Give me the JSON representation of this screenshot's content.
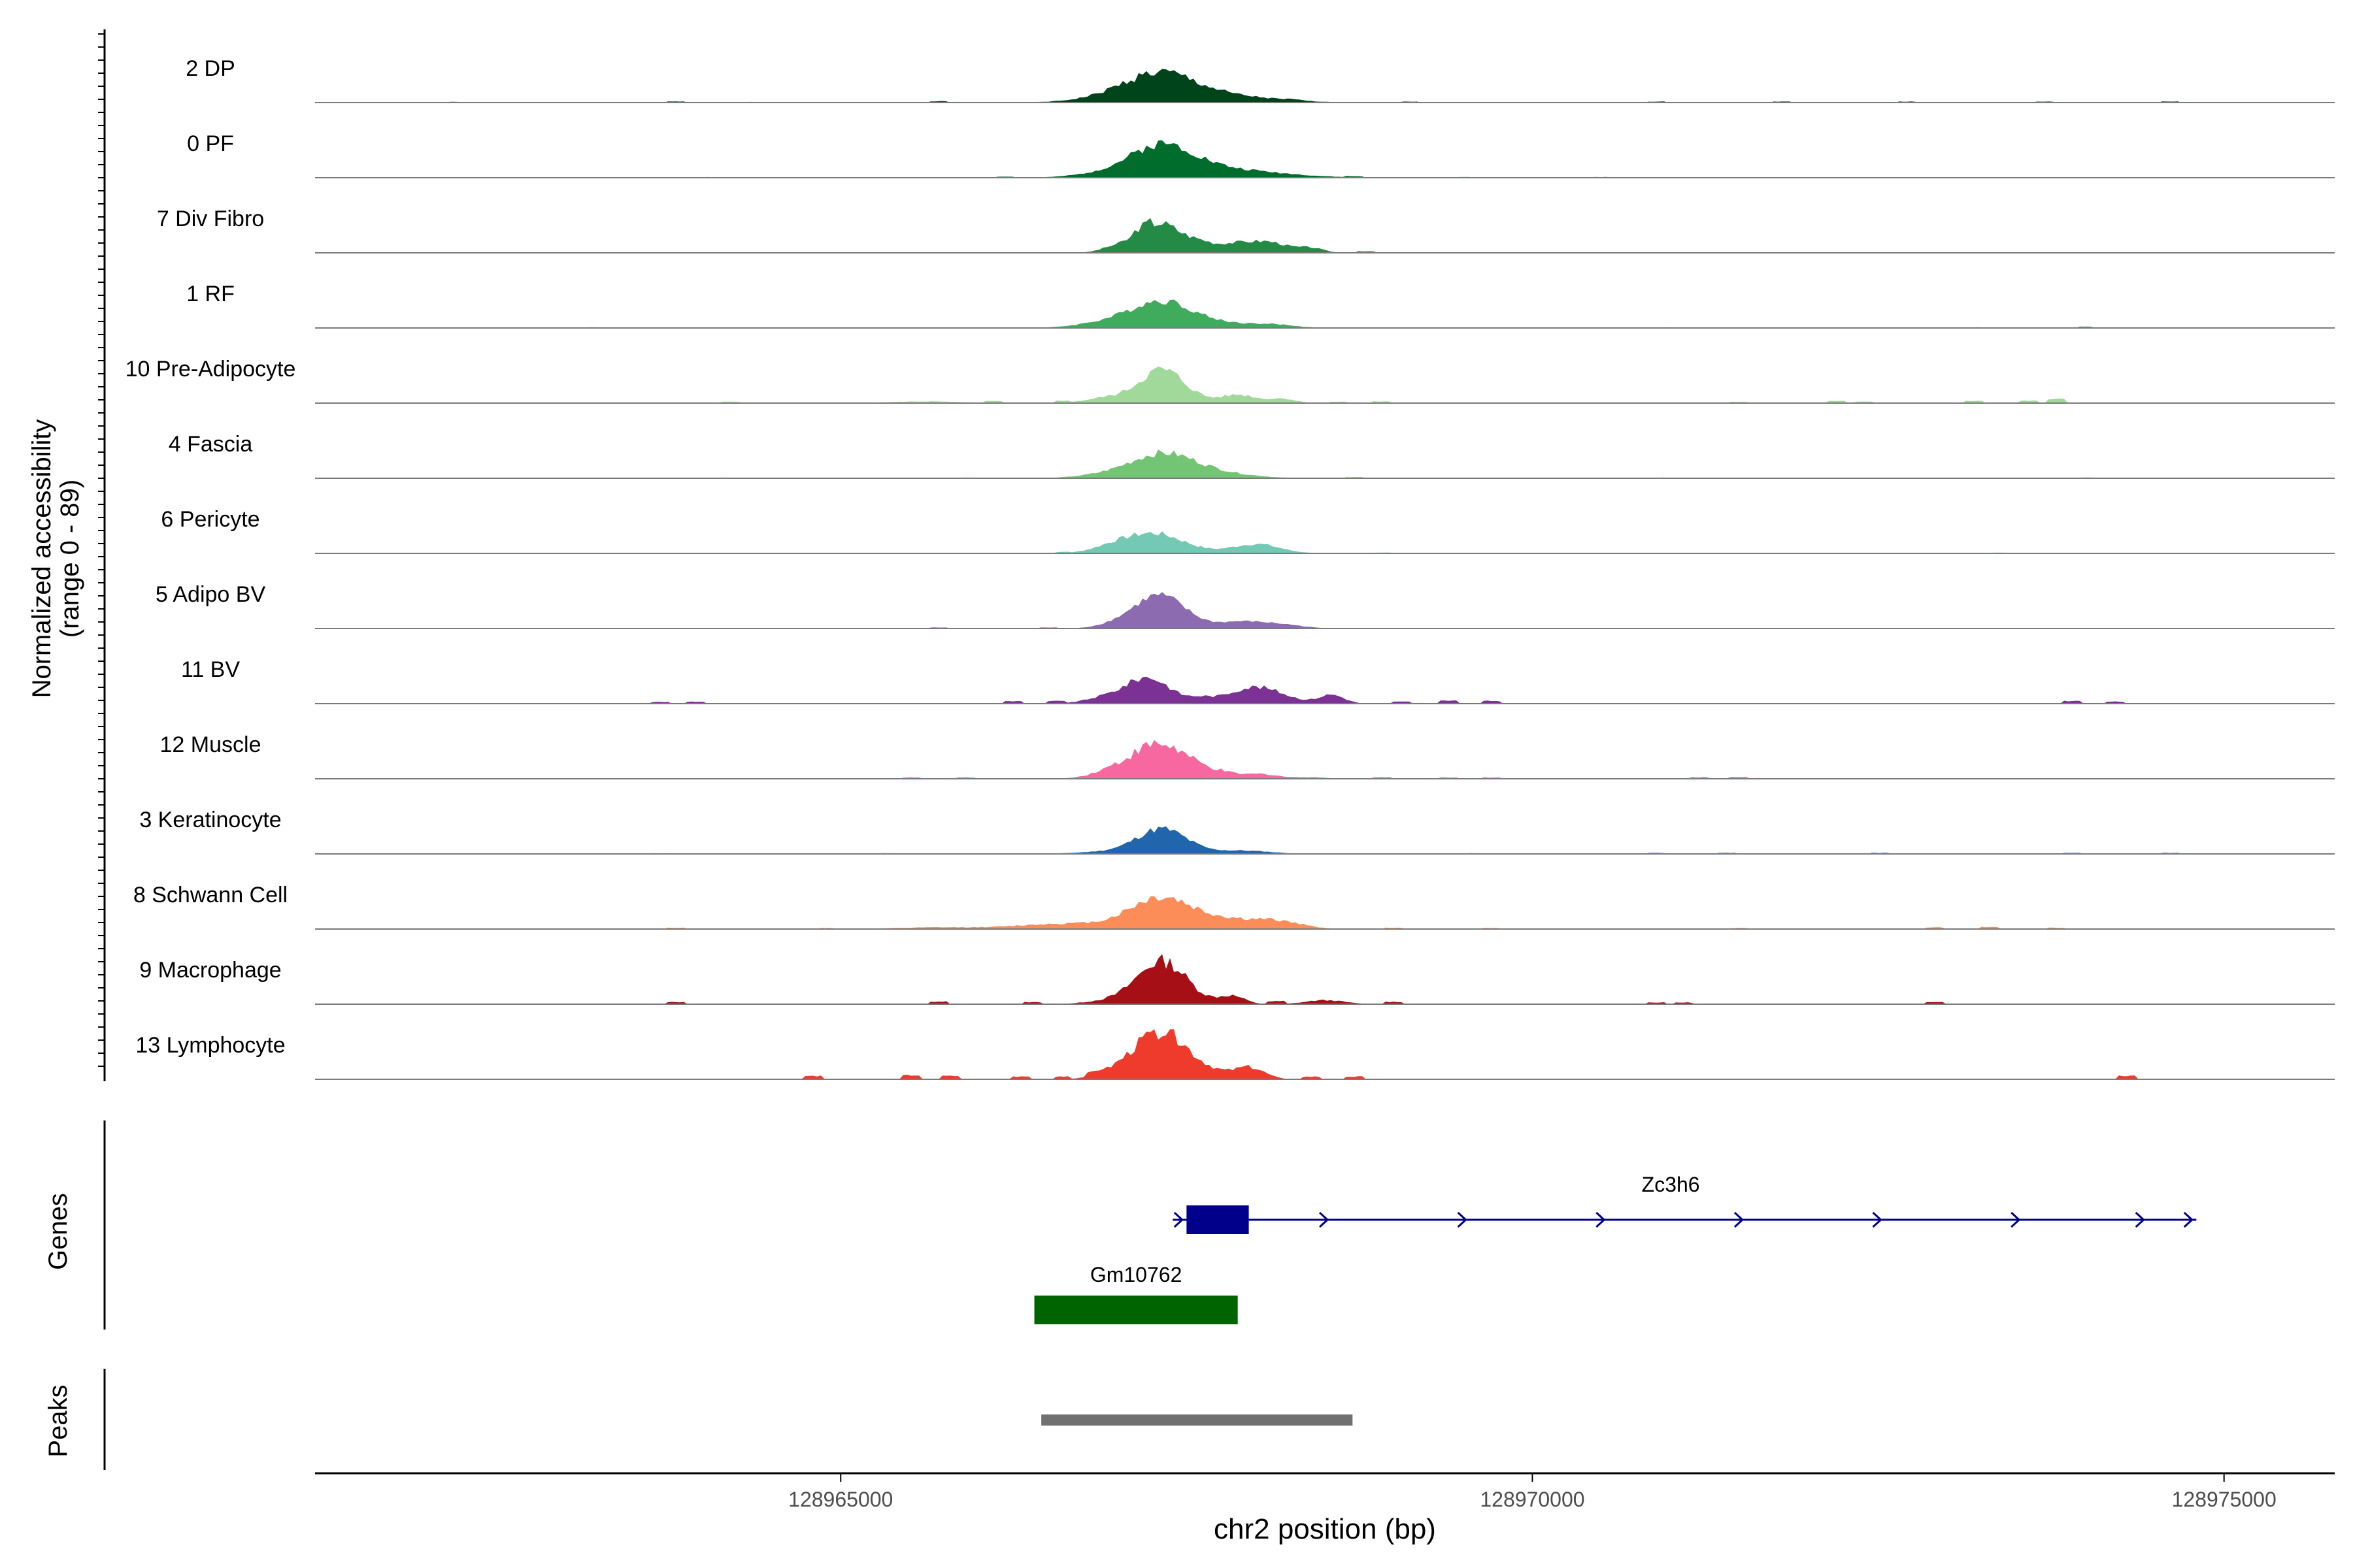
{
  "chart_data": {
    "type": "area",
    "ylabel_line1": "Normalized accessibility",
    "ylabel_line2": "(range 0 - 89)",
    "xlabel": "chr2 position (bp)",
    "xlim": [
      128961200,
      128975800
    ],
    "xticks": [
      {
        "value": 128965000,
        "label": "128965000"
      },
      {
        "value": 128970000,
        "label": "128970000"
      },
      {
        "value": 128975000,
        "label": "128975000"
      }
    ],
    "ylim": [
      0,
      89
    ],
    "series": [
      {
        "name": "2 DP",
        "color": "#00441b",
        "noise": 0.35,
        "seed": 1,
        "peaks": [
          [
            128967300,
            260,
            0.8
          ],
          [
            128967650,
            350,
            0.14
          ],
          [
            128966900,
            250,
            0.08
          ],
          [
            128968000,
            300,
            0.07
          ]
        ],
        "blips": [
          [
            128962200,
            0.02
          ],
          [
            128963800,
            0.03
          ],
          [
            128964400,
            0.02
          ],
          [
            128965700,
            0.04
          ],
          [
            128968300,
            0.02
          ],
          [
            128969100,
            0.03
          ],
          [
            128970900,
            0.03
          ],
          [
            128971800,
            0.03
          ],
          [
            128972700,
            0.03
          ],
          [
            128973700,
            0.03
          ],
          [
            128974600,
            0.03
          ]
        ]
      },
      {
        "name": "0 PF",
        "color": "#006d2c",
        "noise": 0.3,
        "seed": 2,
        "peaks": [
          [
            128967320,
            230,
            0.88
          ],
          [
            128967650,
            350,
            0.18
          ],
          [
            128966900,
            220,
            0.1
          ],
          [
            128968000,
            350,
            0.1
          ]
        ],
        "blips": [
          [
            128964000,
            0.02
          ],
          [
            128966200,
            0.03
          ],
          [
            128968700,
            0.03
          ],
          [
            128969500,
            0.02
          ],
          [
            128970500,
            0.02
          ]
        ]
      },
      {
        "name": "7 Div Fibro",
        "color": "#238b45",
        "noise": 0.3,
        "seed": 3,
        "peaks": [
          [
            128967300,
            170,
            0.9
          ],
          [
            128967850,
            160,
            0.28
          ],
          [
            128968120,
            130,
            0.26
          ],
          [
            128968400,
            90,
            0.14
          ],
          [
            128966950,
            90,
            0.1
          ],
          [
            128967600,
            80,
            0.14
          ]
        ],
        "blips": [
          [
            128968800,
            0.05
          ],
          [
            128967180,
            0.1
          ]
        ]
      },
      {
        "name": "1 RF",
        "color": "#41ab5d",
        "noise": 0.3,
        "seed": 4,
        "peaks": [
          [
            128967320,
            220,
            0.8
          ],
          [
            128966900,
            200,
            0.14
          ],
          [
            128967800,
            220,
            0.12
          ],
          [
            128968150,
            150,
            0.08
          ]
        ],
        "blips": [
          [
            128963200,
            0.02
          ],
          [
            128965400,
            0.02
          ],
          [
            128971000,
            0.02
          ],
          [
            128973200,
            0.02
          ],
          [
            128974000,
            0.04
          ]
        ]
      },
      {
        "name": "10 Pre-Adipocyte",
        "color": "#a1d99b",
        "noise": 0.35,
        "seed": 5,
        "peaks": [
          [
            128967320,
            170,
            1.0
          ],
          [
            128967880,
            130,
            0.25
          ],
          [
            128968200,
            90,
            0.13
          ],
          [
            128966900,
            140,
            0.14
          ],
          [
            128965600,
            250,
            0.05
          ]
        ],
        "blips": [
          [
            128964200,
            0.04
          ],
          [
            128966100,
            0.05
          ],
          [
            128966600,
            0.06
          ],
          [
            128968600,
            0.04
          ],
          [
            128968900,
            0.05
          ],
          [
            128971500,
            0.04
          ],
          [
            128972200,
            0.06
          ],
          [
            128972400,
            0.05
          ],
          [
            128973200,
            0.07
          ],
          [
            128973600,
            0.07
          ],
          [
            128973800,
            0.12
          ]
        ]
      },
      {
        "name": "4 Fascia",
        "color": "#74c476",
        "noise": 0.3,
        "seed": 6,
        "peaks": [
          [
            128967320,
            230,
            0.7
          ],
          [
            128967700,
            260,
            0.15
          ],
          [
            128966900,
            200,
            0.08
          ]
        ],
        "blips": [
          [
            128964200,
            0.02
          ],
          [
            128965900,
            0.02
          ],
          [
            128968700,
            0.03
          ],
          [
            128970900,
            0.02
          ],
          [
            128974000,
            0.02
          ]
        ]
      },
      {
        "name": "6 Pericyte",
        "color": "#74c9b4",
        "noise": 0.3,
        "seed": 7,
        "peaks": [
          [
            128967260,
            220,
            0.6
          ],
          [
            128968000,
            170,
            0.28
          ],
          [
            128966950,
            140,
            0.12
          ]
        ],
        "blips": [
          [
            128965300,
            0.02
          ],
          [
            128966600,
            0.03
          ],
          [
            128968900,
            0.02
          ],
          [
            128973400,
            0.02
          ]
        ]
      },
      {
        "name": "5 Adipo BV",
        "color": "#8c6bb1",
        "noise": 0.25,
        "seed": 8,
        "peaks": [
          [
            128967300,
            190,
            1.0
          ],
          [
            128967900,
            170,
            0.2
          ],
          [
            128968200,
            150,
            0.1
          ],
          [
            128966950,
            120,
            0.06
          ]
        ],
        "blips": [
          [
            128965700,
            0.03
          ],
          [
            128966500,
            0.03
          ]
        ]
      },
      {
        "name": "11 BV",
        "color": "#7b3294",
        "noise": 0.3,
        "seed": 9,
        "peaks": [
          [
            128967220,
            160,
            0.78
          ],
          [
            128968000,
            200,
            0.5
          ],
          [
            128968550,
            90,
            0.26
          ],
          [
            128966900,
            140,
            0.16
          ],
          [
            128967600,
            80,
            0.12
          ]
        ],
        "blips": [
          [
            128963700,
            0.05
          ],
          [
            128963950,
            0.06
          ],
          [
            128966250,
            0.07
          ],
          [
            128966550,
            0.07
          ],
          [
            128969050,
            0.06
          ],
          [
            128969400,
            0.09
          ],
          [
            128969700,
            0.08
          ],
          [
            128973900,
            0.08
          ],
          [
            128974200,
            0.06
          ]
        ]
      },
      {
        "name": "12 Muscle",
        "color": "#f768a1",
        "noise": 0.4,
        "seed": 10,
        "peaks": [
          [
            128967300,
            220,
            1.05
          ],
          [
            128967750,
            120,
            0.12
          ],
          [
            128968050,
            120,
            0.14
          ],
          [
            128966900,
            120,
            0.1
          ],
          [
            128968400,
            100,
            0.05
          ]
        ],
        "blips": [
          [
            128965500,
            0.04
          ],
          [
            128965900,
            0.04
          ],
          [
            128968900,
            0.05
          ],
          [
            128969400,
            0.04
          ],
          [
            128969700,
            0.04
          ],
          [
            128971200,
            0.05
          ],
          [
            128971500,
            0.05
          ]
        ]
      },
      {
        "name": "3 Keratinocyte",
        "color": "#2166ac",
        "noise": 0.3,
        "seed": 11,
        "peaks": [
          [
            128967320,
            180,
            0.75
          ],
          [
            128967900,
            200,
            0.1
          ],
          [
            128966900,
            200,
            0.06
          ]
        ],
        "blips": [
          [
            128963700,
            0.02
          ],
          [
            128965300,
            0.02
          ],
          [
            128969500,
            0.02
          ],
          [
            128970900,
            0.03
          ],
          [
            128971400,
            0.03
          ],
          [
            128972500,
            0.03
          ],
          [
            128973900,
            0.03
          ],
          [
            128974600,
            0.03
          ]
        ]
      },
      {
        "name": "8 Schwann Cell",
        "color": "#fc8d59",
        "noise": 0.35,
        "seed": 12,
        "peaks": [
          [
            128967320,
            230,
            0.95
          ],
          [
            128967800,
            180,
            0.22
          ],
          [
            128968150,
            180,
            0.24
          ],
          [
            128966600,
            320,
            0.16
          ],
          [
            128965700,
            300,
            0.05
          ]
        ],
        "blips": [
          [
            128963800,
            0.04
          ],
          [
            128964900,
            0.03
          ],
          [
            128969000,
            0.04
          ],
          [
            128969700,
            0.03
          ],
          [
            128971500,
            0.03
          ],
          [
            128972900,
            0.05
          ],
          [
            128973300,
            0.06
          ],
          [
            128973800,
            0.04
          ]
        ]
      },
      {
        "name": "9 Macrophage",
        "color": "#a50f15",
        "noise": 0.35,
        "seed": 13,
        "peaks": [
          [
            128967320,
            180,
            1.3
          ],
          [
            128967830,
            90,
            0.24
          ],
          [
            128968500,
            140,
            0.12
          ],
          [
            128966900,
            150,
            0.08
          ]
        ],
        "blips": [
          [
            128963800,
            0.06
          ],
          [
            128965700,
            0.08
          ],
          [
            128966400,
            0.06
          ],
          [
            128968150,
            0.08
          ],
          [
            128969000,
            0.07
          ],
          [
            128970900,
            0.05
          ],
          [
            128971100,
            0.05
          ],
          [
            128972900,
            0.06
          ]
        ]
      },
      {
        "name": "13 Lymphocyte",
        "color": "#ef3b2c",
        "noise": 0.35,
        "seed": 14,
        "peaks": [
          [
            128967320,
            200,
            1.45
          ],
          [
            128967950,
            110,
            0.36
          ],
          [
            128966960,
            140,
            0.12
          ],
          [
            128967700,
            90,
            0.1
          ]
        ],
        "blips": [
          [
            128964800,
            0.1
          ],
          [
            128965500,
            0.12
          ],
          [
            128965800,
            0.1
          ],
          [
            128966300,
            0.08
          ],
          [
            128966600,
            0.08
          ],
          [
            128966850,
            0.08
          ],
          [
            128968400,
            0.08
          ],
          [
            128968700,
            0.08
          ],
          [
            128974300,
            0.1
          ]
        ]
      }
    ],
    "genes": [
      {
        "name": "Zc3h6",
        "color": "#00008b",
        "strand": "+",
        "start": 128967400,
        "end": 128974800,
        "exons": [
          [
            128967500,
            128967950
          ]
        ],
        "arrows": [
          128967450,
          128968500,
          128969500,
          128970500,
          128971500,
          128972500,
          128973500,
          128974400,
          128974750
        ]
      },
      {
        "name": "Gm10762",
        "color": "#006400",
        "start": 128966400,
        "end": 128967870,
        "exons": [
          [
            128966400,
            128967870
          ]
        ],
        "arrows": []
      }
    ],
    "peaks": [
      {
        "start": 128966450,
        "end": 128968700,
        "color": "#707070"
      }
    ],
    "track_labels": {
      "genes": "Genes",
      "peaks": "Peaks"
    }
  }
}
